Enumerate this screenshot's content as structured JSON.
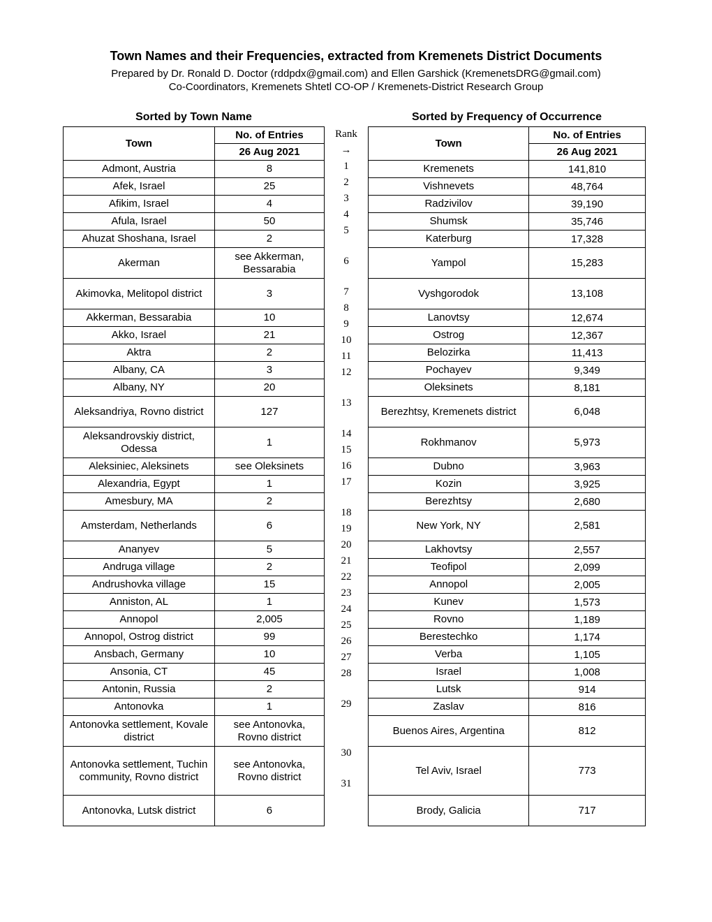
{
  "header": {
    "title": "Town Names and their Frequencies, extracted from Kremenets District Documents",
    "subtitle1": "Prepared by Dr. Ronald D. Doctor (rddpdx@gmail.com) and Ellen Garshick (KremenetsDRG@gmail.com)",
    "subtitle2": "Co-Coordinators, Kremenets Shtetl CO-OP / Kremenets-District Research Group"
  },
  "left": {
    "section": "Sorted by Town Name",
    "col1": "Town",
    "col2a": "No. of Entries",
    "col2b": "26 Aug 2021",
    "rows": [
      {
        "t": "Admont, Austria",
        "n": "8"
      },
      {
        "t": "Afek, Israel",
        "n": "25"
      },
      {
        "t": "Afikim, Israel",
        "n": "4"
      },
      {
        "t": "Afula, Israel",
        "n": "50"
      },
      {
        "t": "Ahuzat Shoshana, Israel",
        "n": "2"
      },
      {
        "t": "Akerman",
        "n": "see Akkerman, Bessarabia",
        "tall": "med"
      },
      {
        "t": "Akimovka, Melitopol district",
        "n": "3",
        "tall": "med"
      },
      {
        "t": "Akkerman, Bessarabia",
        "n": "10"
      },
      {
        "t": "Akko, Israel",
        "n": "21"
      },
      {
        "t": "Aktra",
        "n": "2"
      },
      {
        "t": "Albany, CA",
        "n": "3"
      },
      {
        "t": "Albany, NY",
        "n": "20"
      },
      {
        "t": "Aleksandriya, Rovno district",
        "n": "127",
        "tall": "med"
      },
      {
        "t": "Aleksandrovskiy district, Odessa",
        "n": "1",
        "tall": "med"
      },
      {
        "t": "Aleksiniec, Aleksinets",
        "n": "see Oleksinets"
      },
      {
        "t": "Alexandria, Egypt",
        "n": "1"
      },
      {
        "t": "Amesbury, MA",
        "n": "2"
      },
      {
        "t": "Amsterdam, Netherlands",
        "n": "6",
        "tall": "med"
      },
      {
        "t": "Ananyev",
        "n": "5"
      },
      {
        "t": "Andruga village",
        "n": "2"
      },
      {
        "t": "Andrushovka village",
        "n": "15"
      },
      {
        "t": "Anniston, AL",
        "n": "1"
      },
      {
        "t": "Annopol",
        "n": "2,005"
      },
      {
        "t": "Annopol, Ostrog district",
        "n": "99"
      },
      {
        "t": "Ansbach, Germany",
        "n": "10"
      },
      {
        "t": "Ansonia, CT",
        "n": "45"
      },
      {
        "t": "Antonin, Russia",
        "n": "2"
      },
      {
        "t": "Antonovka",
        "n": "1"
      },
      {
        "t": "Antonovka settlement, Kovale district",
        "n": "see Antonovka, Rovno district",
        "tall": "med"
      },
      {
        "t": "Antonovka settlement, Tuchin community, Rovno district",
        "n": "see Antonovka, Rovno district",
        "tall": "xtall"
      },
      {
        "t": "Antonovka, Lutsk district",
        "n": "6",
        "tall": "med"
      }
    ]
  },
  "rank": {
    "h1": "Rank",
    "h2": "→",
    "values": [
      "1",
      "2",
      "3",
      "4",
      "5",
      "6",
      "7",
      "8",
      "9",
      "10",
      "11",
      "12",
      "13",
      "14",
      "15",
      "16",
      "17",
      "18",
      "19",
      "20",
      "21",
      "22",
      "23",
      "24",
      "25",
      "26",
      "27",
      "28",
      "29",
      "30",
      "31"
    ]
  },
  "right": {
    "section": "Sorted by Frequency of Occurrence",
    "col1": "Town",
    "col2a": "No. of Entries",
    "col2b": "26 Aug 2021",
    "rows": [
      {
        "t": "Kremenets",
        "n": "141,810"
      },
      {
        "t": "Vishnevets",
        "n": "48,764"
      },
      {
        "t": "Radzivilov",
        "n": "39,190"
      },
      {
        "t": "Shumsk",
        "n": "35,746"
      },
      {
        "t": "Katerburg",
        "n": "17,328"
      },
      {
        "t": "Yampol",
        "n": "15,283",
        "tall": "med"
      },
      {
        "t": "Vyshgorodok",
        "n": "13,108",
        "tall": "med"
      },
      {
        "t": "Lanovtsy",
        "n": "12,674"
      },
      {
        "t": "Ostrog",
        "n": "12,367"
      },
      {
        "t": "Belozirka",
        "n": "11,413"
      },
      {
        "t": "Pochayev",
        "n": "9,349"
      },
      {
        "t": "Oleksinets",
        "n": "8,181"
      },
      {
        "t": "Berezhtsy, Kremenets district",
        "n": "6,048",
        "tall": "med"
      },
      {
        "t": "Rokhmanov",
        "n": "5,973",
        "tall": "med"
      },
      {
        "t": "Dubno",
        "n": "3,963"
      },
      {
        "t": "Kozin",
        "n": "3,925"
      },
      {
        "t": "Berezhtsy",
        "n": "2,680"
      },
      {
        "t": "New York, NY",
        "n": "2,581",
        "tall": "med"
      },
      {
        "t": "Lakhovtsy",
        "n": "2,557"
      },
      {
        "t": "Teofipol",
        "n": "2,099"
      },
      {
        "t": "Annopol",
        "n": "2,005"
      },
      {
        "t": "Kunev",
        "n": "1,573"
      },
      {
        "t": "Rovno",
        "n": "1,189"
      },
      {
        "t": "Berestechko",
        "n": "1,174"
      },
      {
        "t": "Verba",
        "n": "1,105"
      },
      {
        "t": "Israel",
        "n": "1,008"
      },
      {
        "t": "Lutsk",
        "n": "914"
      },
      {
        "t": "Zaslav",
        "n": "816"
      },
      {
        "t": "Buenos Aires, Argentina",
        "n": "812",
        "tall": "med"
      },
      {
        "t": "Tel Aviv, Israel",
        "n": "773",
        "tall": "xtall"
      },
      {
        "t": "Brody, Galicia",
        "n": "717",
        "tall": "med"
      }
    ]
  }
}
